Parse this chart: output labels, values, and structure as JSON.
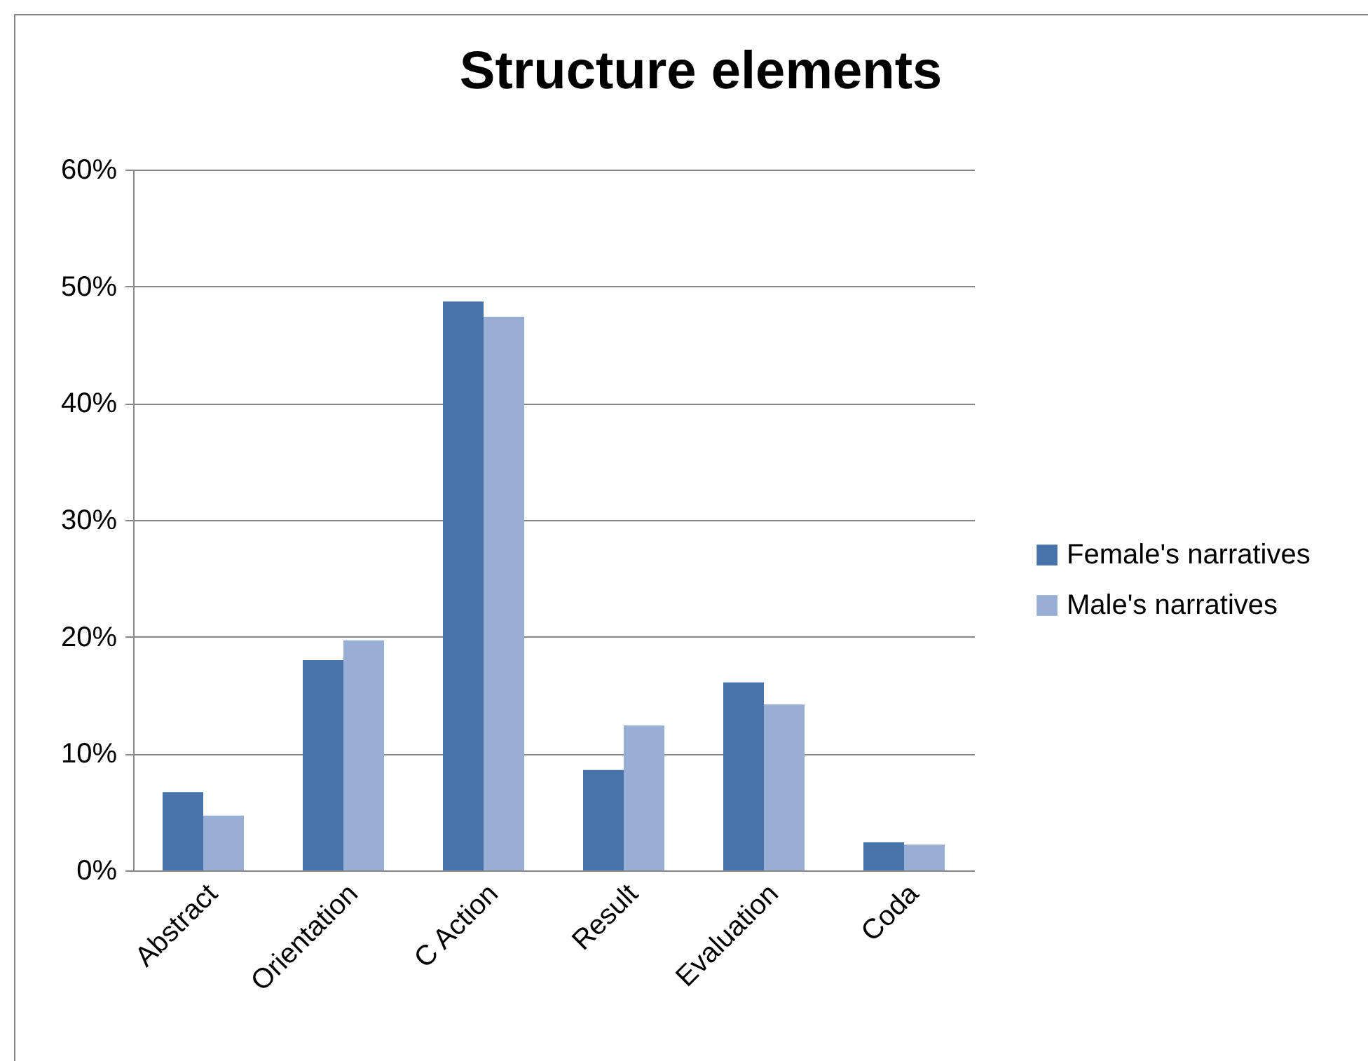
{
  "chart_data": {
    "type": "bar",
    "title": "Structure elements",
    "categories": [
      "Abstract",
      "Orientation",
      "C Action",
      "Result",
      "Evaluation",
      "Coda"
    ],
    "series": [
      {
        "name": "Female's narratives",
        "color": "#4673aa",
        "values": [
          6.7,
          18.0,
          48.7,
          8.6,
          16.1,
          2.4
        ]
      },
      {
        "name": "Male's narratives",
        "color": "#98aed4",
        "values": [
          4.7,
          19.7,
          47.4,
          12.4,
          14.2,
          2.2
        ]
      }
    ],
    "ylim": [
      0,
      60
    ],
    "yticks": [
      {
        "value": 0,
        "label": "0%"
      },
      {
        "value": 10,
        "label": "10%"
      },
      {
        "value": 20,
        "label": "20%"
      },
      {
        "value": 30,
        "label": "30%"
      },
      {
        "value": 40,
        "label": "40%"
      },
      {
        "value": 50,
        "label": "50%"
      },
      {
        "value": 60,
        "label": "60%"
      }
    ],
    "grid": "y",
    "legend": "right"
  }
}
